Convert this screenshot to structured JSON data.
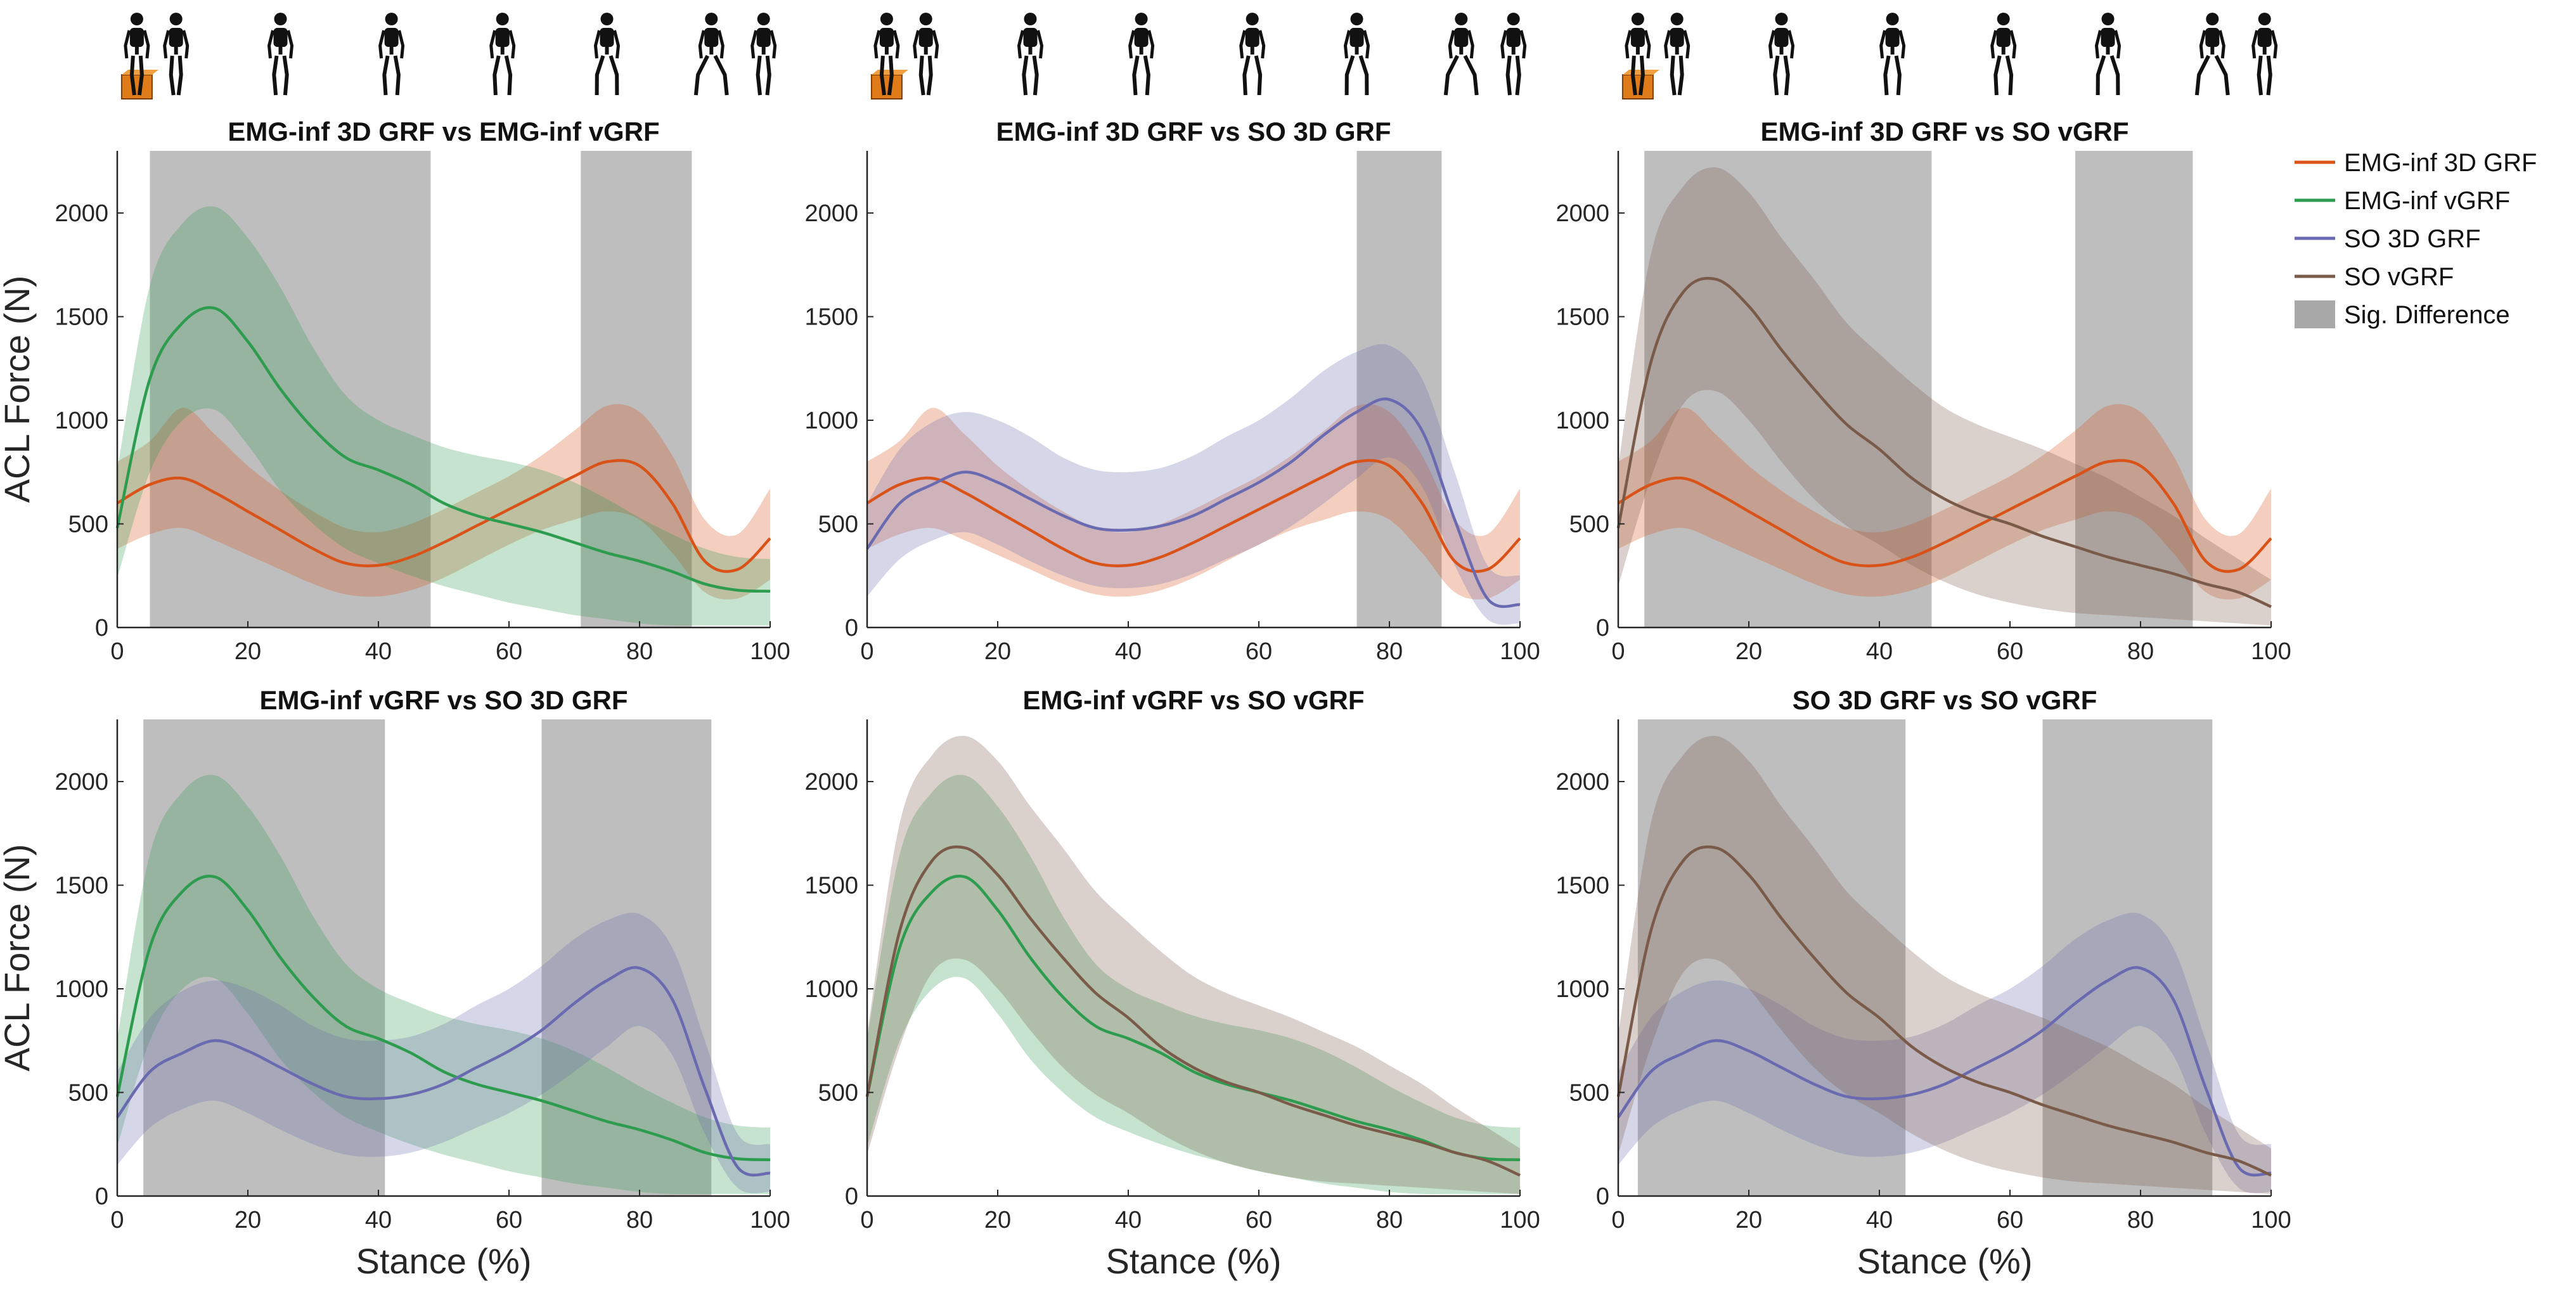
{
  "figure": {
    "legend_entries": [
      {
        "label": "EMG-inf 3D GRF",
        "series": "emg3d"
      },
      {
        "label": "EMG-inf vGRF",
        "series": "emgv"
      },
      {
        "label": "SO 3D GRF",
        "series": "so3d"
      },
      {
        "label": "SO vGRF",
        "series": "sov"
      },
      {
        "label": "Sig. Difference",
        "series": "sig"
      }
    ],
    "legend_position": "right",
    "skeleton_icon": "walking-skeleton-icon",
    "box_icon": "box-platform-icon"
  },
  "colors": {
    "emg3d": "#d95319",
    "emgv": "#2e9c4e",
    "so3d": "#6a6ab0",
    "sov": "#7a5a48",
    "sig": "#a8a8a8",
    "axis": "#262626"
  },
  "chart_data": [
    {
      "type": "line",
      "title": "EMG-inf 3D GRF vs EMG-inf vGRF",
      "xlabel": "",
      "ylabel": "ACL Force (N)",
      "xlim": [
        0,
        100
      ],
      "ylim": [
        0,
        2300
      ],
      "xticks": [
        "0",
        "20",
        "40",
        "60",
        "80",
        "100"
      ],
      "yticks": [
        "0",
        "500",
        "1000",
        "1500",
        "2000"
      ],
      "series": [
        "emg3d",
        "emgv"
      ],
      "sig_regions": [
        [
          5,
          48
        ],
        [
          71,
          88
        ]
      ]
    },
    {
      "type": "line",
      "title": "EMG-inf 3D GRF vs SO 3D GRF",
      "xlabel": "",
      "ylabel": "",
      "xlim": [
        0,
        100
      ],
      "ylim": [
        0,
        2300
      ],
      "xticks": [
        "0",
        "20",
        "40",
        "60",
        "80",
        "100"
      ],
      "yticks": [
        "0",
        "500",
        "1000",
        "1500",
        "2000"
      ],
      "series": [
        "emg3d",
        "so3d"
      ],
      "sig_regions": [
        [
          75,
          88
        ]
      ]
    },
    {
      "type": "line",
      "title": "EMG-inf 3D GRF vs SO vGRF",
      "xlabel": "",
      "ylabel": "",
      "xlim": [
        0,
        100
      ],
      "ylim": [
        0,
        2300
      ],
      "xticks": [
        "0",
        "20",
        "40",
        "60",
        "80",
        "100"
      ],
      "yticks": [
        "0",
        "500",
        "1000",
        "1500",
        "2000"
      ],
      "series": [
        "emg3d",
        "sov"
      ],
      "sig_regions": [
        [
          4,
          48
        ],
        [
          70,
          88
        ]
      ]
    },
    {
      "type": "line",
      "title": "EMG-inf vGRF vs SO 3D GRF",
      "xlabel": "Stance (%)",
      "ylabel": "ACL Force (N)",
      "xlim": [
        0,
        100
      ],
      "ylim": [
        0,
        2300
      ],
      "xticks": [
        "0",
        "20",
        "40",
        "60",
        "80",
        "100"
      ],
      "yticks": [
        "0",
        "500",
        "1000",
        "1500",
        "2000"
      ],
      "series": [
        "emgv",
        "so3d"
      ],
      "sig_regions": [
        [
          4,
          41
        ],
        [
          65,
          91
        ]
      ]
    },
    {
      "type": "line",
      "title": "EMG-inf vGRF vs SO vGRF",
      "xlabel": "Stance (%)",
      "ylabel": "",
      "xlim": [
        0,
        100
      ],
      "ylim": [
        0,
        2300
      ],
      "xticks": [
        "0",
        "20",
        "40",
        "60",
        "80",
        "100"
      ],
      "yticks": [
        "0",
        "500",
        "1000",
        "1500",
        "2000"
      ],
      "series": [
        "emgv",
        "sov"
      ],
      "sig_regions": []
    },
    {
      "type": "line",
      "title": "SO 3D GRF vs SO vGRF",
      "xlabel": "Stance (%)",
      "ylabel": "",
      "xlim": [
        0,
        100
      ],
      "ylim": [
        0,
        2300
      ],
      "xticks": [
        "0",
        "20",
        "40",
        "60",
        "80",
        "100"
      ],
      "yticks": [
        "0",
        "500",
        "1000",
        "1500",
        "2000"
      ],
      "series": [
        "so3d",
        "sov"
      ],
      "sig_regions": [
        [
          3,
          44
        ],
        [
          65,
          91
        ]
      ]
    }
  ],
  "series_data": {
    "x": [
      0,
      5,
      10,
      15,
      20,
      25,
      30,
      35,
      40,
      45,
      50,
      55,
      60,
      65,
      70,
      75,
      80,
      85,
      90,
      95,
      100
    ],
    "emg3d": {
      "label": "EMG-inf 3D GRF",
      "mean": [
        600,
        690,
        720,
        650,
        560,
        470,
        380,
        310,
        300,
        340,
        410,
        490,
        570,
        650,
        730,
        800,
        780,
        600,
        320,
        280,
        430
      ],
      "upper": [
        800,
        900,
        1060,
        930,
        780,
        660,
        560,
        480,
        460,
        500,
        570,
        650,
        730,
        830,
        950,
        1070,
        1040,
        830,
        520,
        450,
        670
      ],
      "lower": [
        380,
        450,
        480,
        420,
        350,
        280,
        210,
        160,
        150,
        180,
        240,
        320,
        400,
        470,
        520,
        560,
        520,
        360,
        170,
        140,
        230
      ]
    },
    "emgv": {
      "label": "EMG-inf vGRF",
      "mean": [
        480,
        1200,
        1470,
        1540,
        1380,
        1150,
        960,
        820,
        760,
        690,
        600,
        540,
        500,
        460,
        410,
        360,
        320,
        270,
        210,
        180,
        175
      ],
      "upper": [
        760,
        1650,
        1950,
        2030,
        1880,
        1640,
        1350,
        1120,
        1000,
        930,
        870,
        830,
        800,
        760,
        700,
        620,
        530,
        450,
        380,
        340,
        330
      ],
      "lower": [
        240,
        750,
        1000,
        1050,
        880,
        660,
        500,
        380,
        310,
        250,
        200,
        160,
        120,
        90,
        60,
        40,
        20,
        10,
        10,
        10,
        10
      ]
    },
    "so3d": {
      "label": "SO 3D GRF",
      "mean": [
        380,
        600,
        690,
        750,
        700,
        620,
        540,
        480,
        470,
        490,
        540,
        620,
        700,
        800,
        930,
        1040,
        1100,
        950,
        520,
        140,
        110
      ],
      "upper": [
        600,
        860,
        990,
        1040,
        1000,
        920,
        820,
        760,
        750,
        770,
        830,
        920,
        1000,
        1110,
        1240,
        1330,
        1360,
        1200,
        750,
        300,
        250
      ],
      "lower": [
        150,
        330,
        420,
        460,
        400,
        320,
        250,
        200,
        190,
        210,
        260,
        330,
        400,
        490,
        600,
        720,
        820,
        680,
        300,
        40,
        20
      ]
    },
    "sov": {
      "label": "SO vGRF",
      "mean": [
        480,
        1280,
        1620,
        1680,
        1550,
        1340,
        1150,
        980,
        860,
        720,
        620,
        550,
        500,
        440,
        390,
        340,
        300,
        260,
        210,
        170,
        100
      ],
      "upper": [
        780,
        1800,
        2130,
        2220,
        2100,
        1880,
        1680,
        1470,
        1320,
        1180,
        1060,
        980,
        920,
        860,
        790,
        720,
        630,
        540,
        430,
        330,
        230
      ],
      "lower": [
        200,
        720,
        1080,
        1140,
        1000,
        800,
        620,
        490,
        400,
        300,
        220,
        160,
        120,
        90,
        70,
        60,
        50,
        40,
        30,
        20,
        10
      ]
    }
  }
}
